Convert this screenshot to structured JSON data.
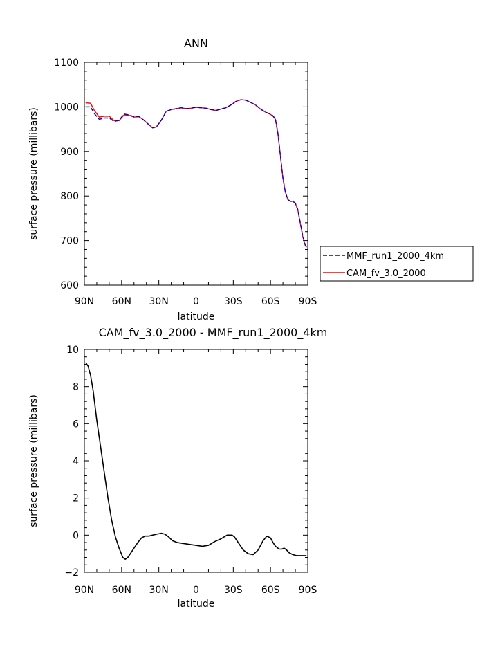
{
  "chart_data": [
    {
      "type": "line",
      "title": "ANN",
      "xlabel": "latitude",
      "ylabel": "surface pressure (millibars)",
      "xlim": [
        90,
        -90
      ],
      "ylim": [
        600,
        1100
      ],
      "xticks": [
        90,
        60,
        30,
        0,
        -30,
        -60,
        -90
      ],
      "xtick_labels": [
        "90N",
        "60N",
        "30N",
        "0",
        "30S",
        "60S",
        "90S"
      ],
      "yticks": [
        600,
        700,
        800,
        900,
        1000,
        1100
      ],
      "ytick_labels": [
        "600",
        "700",
        "800",
        "900",
        "1000",
        "1100"
      ],
      "legend_position": "right",
      "series": [
        {
          "name": "MMF_run1_2000_4km",
          "color": "#0000cc",
          "dash": "dashed",
          "x": [
            89,
            85,
            82,
            78,
            74,
            70,
            66,
            62,
            58,
            54,
            50,
            46,
            42,
            38,
            35,
            32,
            28,
            24,
            20,
            16,
            12,
            8,
            4,
            0,
            -4,
            -8,
            -12,
            -16,
            -20,
            -24,
            -28,
            -32,
            -36,
            -40,
            -44,
            -48,
            -52,
            -56,
            -60,
            -62,
            -64,
            -66,
            -68,
            -70,
            -72,
            -74,
            -76,
            -78,
            -80,
            -82,
            -84,
            -86,
            -88,
            -89
          ],
          "values": [
            1000,
            1000,
            985,
            972,
            975,
            975,
            967,
            970,
            984,
            982,
            978,
            978,
            970,
            960,
            953,
            955,
            970,
            990,
            994,
            996,
            998,
            996,
            997,
            999,
            998,
            997,
            994,
            992,
            995,
            998,
            1004,
            1012,
            1016,
            1015,
            1010,
            1004,
            995,
            988,
            984,
            980,
            972,
            940,
            890,
            840,
            808,
            792,
            788,
            788,
            784,
            770,
            740,
            710,
            690,
            686
          ]
        },
        {
          "name": "CAM_fv_3.0_2000",
          "color": "#ff0000",
          "dash": "solid",
          "x": [
            89,
            85,
            82,
            78,
            74,
            70,
            66,
            62,
            58,
            54,
            50,
            46,
            42,
            38,
            35,
            32,
            28,
            24,
            20,
            16,
            12,
            8,
            4,
            0,
            -4,
            -8,
            -12,
            -16,
            -20,
            -24,
            -28,
            -32,
            -36,
            -40,
            -44,
            -48,
            -52,
            -56,
            -60,
            -62,
            -64,
            -66,
            -68,
            -70,
            -72,
            -74,
            -76,
            -78,
            -80,
            -82,
            -84,
            -86,
            -88,
            -89
          ],
          "values": [
            1009,
            1008,
            992,
            977,
            979,
            979,
            969,
            969,
            982,
            981,
            977,
            978,
            970,
            960,
            953,
            955,
            970,
            990,
            994,
            996,
            998,
            996,
            997,
            999,
            998,
            997,
            994,
            992,
            995,
            998,
            1004,
            1012,
            1016,
            1015,
            1010,
            1004,
            995,
            988,
            983,
            979,
            972,
            940,
            890,
            840,
            808,
            792,
            788,
            788,
            783,
            769,
            739,
            709,
            689,
            685
          ]
        }
      ]
    },
    {
      "type": "line",
      "title": "CAM_fv_3.0_2000 - MMF_run1_2000_4km",
      "xlabel": "latitude",
      "ylabel": "surface pressure (millibars)",
      "xlim": [
        90,
        -90
      ],
      "ylim": [
        -2,
        10
      ],
      "xticks": [
        90,
        60,
        30,
        0,
        -30,
        -60,
        -90
      ],
      "xtick_labels": [
        "90N",
        "60N",
        "30N",
        "0",
        "30S",
        "60S",
        "90S"
      ],
      "yticks": [
        -2,
        0,
        2,
        4,
        6,
        8,
        10
      ],
      "ytick_labels": [
        "−2",
        "0",
        "2",
        "4",
        "6",
        "8",
        "10"
      ],
      "series": [
        {
          "color": "#000000",
          "dash": "solid",
          "x": [
            89,
            87,
            85,
            83,
            80,
            77,
            74,
            71,
            68,
            65,
            62,
            59,
            57,
            55,
            53,
            50,
            47,
            44,
            41,
            38,
            35,
            32,
            28,
            25,
            22,
            19,
            15,
            10,
            5,
            0,
            -5,
            -10,
            -15,
            -20,
            -25,
            -29,
            -31,
            -33,
            -35,
            -38,
            -42,
            -46,
            -50,
            -54,
            -57,
            -60,
            -62,
            -64,
            -66,
            -67,
            -69,
            -71,
            -73,
            -75,
            -78,
            -81,
            -83,
            -85,
            -87,
            -89
          ],
          "values": [
            9.3,
            9.1,
            8.6,
            7.8,
            6.2,
            4.8,
            3.4,
            2.0,
            0.8,
            -0.1,
            -0.7,
            -1.2,
            -1.3,
            -1.2,
            -1.0,
            -0.7,
            -0.4,
            -0.15,
            -0.05,
            -0.05,
            0.0,
            0.05,
            0.1,
            0.05,
            -0.1,
            -0.3,
            -0.4,
            -0.45,
            -0.5,
            -0.55,
            -0.6,
            -0.55,
            -0.35,
            -0.2,
            0.0,
            0.0,
            -0.1,
            -0.3,
            -0.5,
            -0.8,
            -1.0,
            -1.05,
            -0.8,
            -0.3,
            -0.05,
            -0.15,
            -0.4,
            -0.6,
            -0.7,
            -0.75,
            -0.75,
            -0.7,
            -0.8,
            -0.95,
            -1.05,
            -1.1,
            -1.1,
            -1.1,
            -1.1,
            -1.1
          ]
        }
      ]
    }
  ]
}
